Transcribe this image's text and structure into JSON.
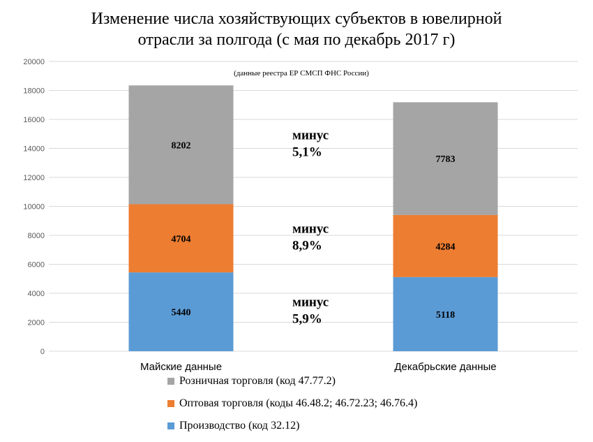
{
  "chart_data": {
    "type": "bar",
    "stacked": true,
    "title": "Изменение числа хозяйствующих субъектов в ювелирной отрасли за полгода (с мая по декабрь 2017 г)",
    "title_lines": [
      "Изменение числа хозяйствующих субъектов в ювелирной",
      "отрасли за полгода (с мая по декабрь 2017 г)"
    ],
    "subtitle": "(данные реестра ЕР СМСП ФНС России)",
    "categories": [
      "Майские данные",
      "Декабрьские данные"
    ],
    "series": [
      {
        "name": "Производство (код 32.12)",
        "values": [
          5440,
          5118
        ],
        "color": "#5b9bd5"
      },
      {
        "name": "Оптовая торговля (коды 46.48.2; 46.72.23; 46.76.4)",
        "values": [
          4704,
          4284
        ],
        "color": "#ed7d31"
      },
      {
        "name": "Розничная торговля (код 47.77.2)",
        "values": [
          8202,
          7783
        ],
        "color": "#a5a5a5"
      }
    ],
    "ylim": [
      0,
      20000
    ],
    "yticks": [
      0,
      2000,
      4000,
      6000,
      8000,
      10000,
      12000,
      14000,
      16000,
      18000,
      20000
    ],
    "grid": true,
    "legend_position": "bottom",
    "annotations": [
      {
        "series": "Розничная торговля (код 47.77.2)",
        "lines": [
          "минус",
          "5,1%"
        ]
      },
      {
        "series": "Оптовая торговля (коды 46.48.2; 46.72.23; 46.76.4)",
        "lines": [
          "минус",
          "8,9%"
        ]
      },
      {
        "series": "Производство (код 32.12)",
        "lines": [
          "минус",
          "5,9%"
        ]
      }
    ],
    "xlabel": "",
    "ylabel": ""
  },
  "legend_order": [
    2,
    1,
    0
  ]
}
